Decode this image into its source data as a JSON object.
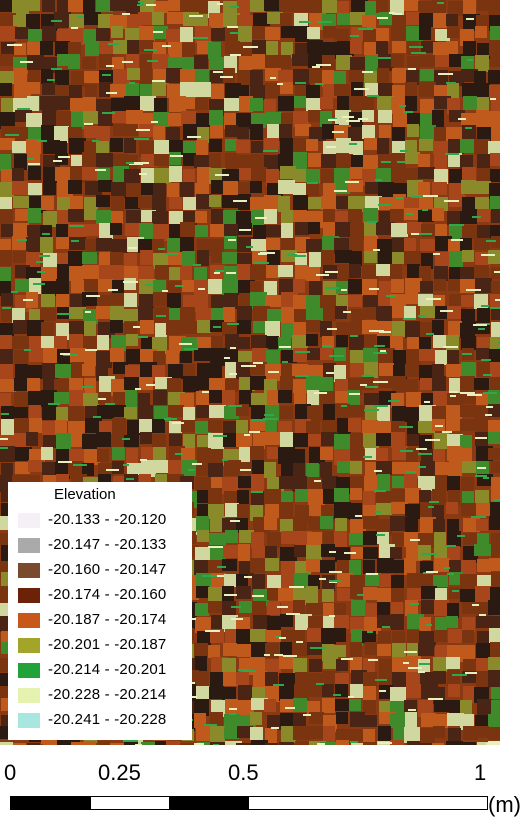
{
  "legend": {
    "title": "Elevation",
    "items": [
      {
        "range": "-20.133 - -20.120",
        "color": "#f4f0f6"
      },
      {
        "range": "-20.147 - -20.133",
        "color": "#aaaaaa"
      },
      {
        "range": "-20.160 - -20.147",
        "color": "#7a4a2c"
      },
      {
        "range": "-20.174 - -20.160",
        "color": "#6b2208"
      },
      {
        "range": "-20.187 - -20.174",
        "color": "#c8581a"
      },
      {
        "range": "-20.201 - -20.187",
        "color": "#a3a52a"
      },
      {
        "range": "-20.214 - -20.201",
        "color": "#22a33a"
      },
      {
        "range": "-20.228 - -20.214",
        "color": "#e6f2b0"
      },
      {
        "range": "-20.241 - -20.228",
        "color": "#a8e6e0"
      }
    ]
  },
  "scale": {
    "ticks": [
      "0",
      "0.25",
      "0.5",
      "1"
    ],
    "unit": "(m)"
  },
  "terrain_palette": [
    "#2a1a12",
    "#4a2414",
    "#6b2a0c",
    "#7a3410",
    "#a6461a",
    "#c05a1c",
    "#8a8a2a",
    "#3f8a2a",
    "#d0d8a0"
  ]
}
